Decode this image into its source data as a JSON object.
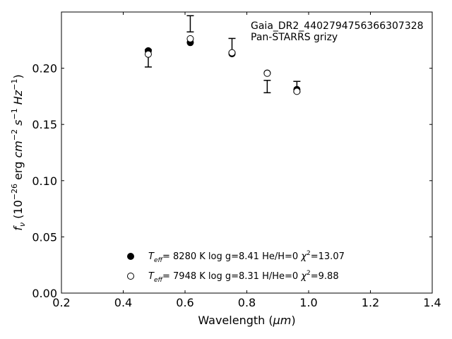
{
  "chart_data": {
    "type": "scatter",
    "xlabel_main": "Wavelength (",
    "xlabel_unit": "μm",
    "xlabel_close": ")",
    "ylabel": {
      "sym": "f",
      "sub": "ν",
      "pre": " (10",
      "exp1": "−26",
      "mid1": " erg ",
      "cm": "cm",
      "exp2": "−2",
      "s": " s",
      "exp3": "−1",
      "hz": " Hz",
      "exp4": "−1",
      "close": ")"
    },
    "xlim": [
      0.2,
      1.4
    ],
    "ylim": [
      0.0,
      0.25
    ],
    "x_ticks": [
      "0.2",
      "0.4",
      "0.6",
      "0.8",
      "1.0",
      "1.2",
      "1.4"
    ],
    "y_ticks": [
      "0.00",
      "0.05",
      "0.10",
      "0.15",
      "0.20"
    ],
    "annotation": [
      "Gaia_DR2_4402794756366307328",
      "Pan-STARRS grizy"
    ],
    "observed": {
      "x": [
        0.481,
        0.617,
        0.752,
        0.866,
        0.962
      ],
      "y": [
        0.2088,
        0.2395,
        0.2204,
        0.1837,
        0.1836
      ],
      "err": [
        0.0077,
        0.0072,
        0.0061,
        0.0055,
        0.0047
      ]
    },
    "series": [
      {
        "style": "filled",
        "x": [
          0.481,
          0.617,
          0.752,
          0.866,
          0.962
        ],
        "y": [
          0.2155,
          0.2228,
          0.2129,
          0.1957,
          0.1811
        ],
        "legend": {
          "teff_sym": "T",
          "teff_sub": "eff",
          "teff_val": "=  8280 K",
          "logg": "  log g=8.41",
          "comp": "  He/H=0",
          "chi_sym": "  χ",
          "chi_sup": "2",
          "chi_val": "=13.07"
        }
      },
      {
        "style": "open",
        "x": [
          0.481,
          0.617,
          0.752,
          0.866,
          0.962
        ],
        "y": [
          0.2125,
          0.2262,
          0.2138,
          0.1955,
          0.1794
        ],
        "legend": {
          "teff_sym": "T",
          "teff_sub": "eff",
          "teff_val": "=  7948 K",
          "logg": "  log g=8.31",
          "comp": "  H/He=0",
          "chi_sym": "  χ",
          "chi_sup": "2",
          "chi_val": "=9.88"
        }
      }
    ]
  }
}
